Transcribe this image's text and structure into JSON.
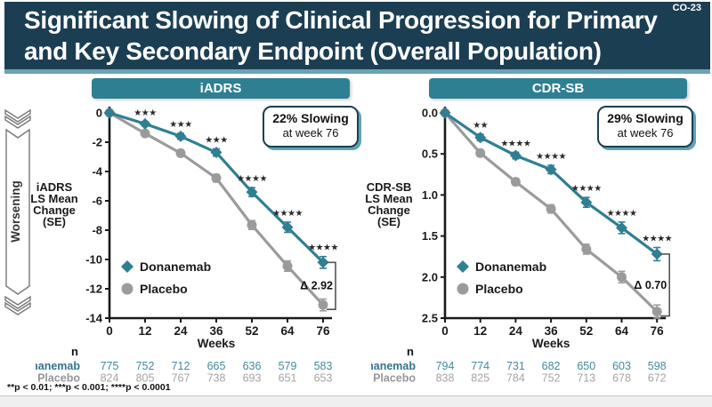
{
  "slide": {
    "code": "CO-23",
    "title_lines": [
      "Significant Slowing of Clinical Progression for Primary",
      "and Key Secondary Endpoint (Overall Population)"
    ],
    "worsening_label": "Worsening",
    "n_row_header": "n",
    "footnote": "**p < 0.01; ***p < 0.001; ****p < 0.0001"
  },
  "colors": {
    "navy": "#1c3e53",
    "teal": "#2f7f93",
    "teal_light": "#6ba3b2",
    "gray_series": "#9b9b9b",
    "axis": "#1a1a1a",
    "star": "#2a2a2a",
    "bracket": "#555555",
    "table_teal": "#44899f",
    "table_teal_label": "#33758c",
    "table_gray": "#a4a4a4",
    "table_gray_label": "#969696"
  },
  "chart_data": [
    {
      "type": "line",
      "title": "iADRS",
      "ylabel_lines": [
        "iADRS",
        "LS Mean",
        "Change",
        "(SE)"
      ],
      "xlabel": "Weeks",
      "x": [
        0,
        12,
        24,
        36,
        52,
        64,
        76
      ],
      "y_ticks": [
        "0",
        "-2",
        "-4",
        "-6",
        "-8",
        "-10",
        "-12",
        "-14"
      ],
      "y_range": 14,
      "series": [
        {
          "name": "Donanemab",
          "marker": "diamond",
          "color": "#2f7f93",
          "values": [
            0,
            -0.75,
            -1.6,
            -2.7,
            -5.4,
            -7.8,
            -10.2
          ],
          "se": [
            0,
            0.15,
            0.2,
            0.25,
            0.3,
            0.35,
            0.4
          ],
          "n": [
            775,
            752,
            712,
            665,
            636,
            579,
            583
          ]
        },
        {
          "name": "Placebo",
          "marker": "circle",
          "color": "#9b9b9b",
          "values": [
            0,
            -1.4,
            -2.75,
            -4.45,
            -7.65,
            -10.45,
            -13.1
          ],
          "se": [
            0,
            0.15,
            0.2,
            0.25,
            0.3,
            0.35,
            0.4
          ],
          "n": [
            824,
            805,
            767,
            738,
            693,
            651,
            653
          ]
        }
      ],
      "significance": [
        "",
        "***",
        "***",
        "***",
        "****",
        "****",
        "****"
      ],
      "callout": {
        "line1": "22% Slowing",
        "line2": "at week 76"
      },
      "delta": "Δ 2.92"
    },
    {
      "type": "line",
      "title": "CDR-SB",
      "ylabel_lines": [
        "CDR-SB",
        "LS Mean",
        "Change",
        "(SE)"
      ],
      "xlabel": "Weeks",
      "x": [
        0,
        12,
        24,
        36,
        52,
        64,
        76
      ],
      "y_ticks": [
        "0.0",
        "0.5",
        "1.0",
        "1.5",
        "2.0",
        "2.5"
      ],
      "y_range": 2.5,
      "series": [
        {
          "name": "Donanemab",
          "marker": "diamond",
          "color": "#2f7f93",
          "values": [
            0,
            0.3,
            0.52,
            0.69,
            1.09,
            1.4,
            1.72
          ],
          "se": [
            0,
            0.04,
            0.04,
            0.05,
            0.06,
            0.07,
            0.08
          ],
          "n": [
            794,
            774,
            731,
            682,
            650,
            603,
            598
          ]
        },
        {
          "name": "Placebo",
          "marker": "circle",
          "color": "#9b9b9b",
          "values": [
            0,
            0.49,
            0.84,
            1.17,
            1.66,
            2.0,
            2.42
          ],
          "se": [
            0,
            0.04,
            0.04,
            0.05,
            0.06,
            0.07,
            0.08
          ],
          "n": [
            838,
            825,
            784,
            752,
            713,
            678,
            672
          ]
        }
      ],
      "significance": [
        "",
        "**",
        "****",
        "****",
        "****",
        "****",
        "****"
      ],
      "callout": {
        "line1": "29% Slowing",
        "line2": "at week 76"
      },
      "delta": "Δ 0.70"
    }
  ]
}
